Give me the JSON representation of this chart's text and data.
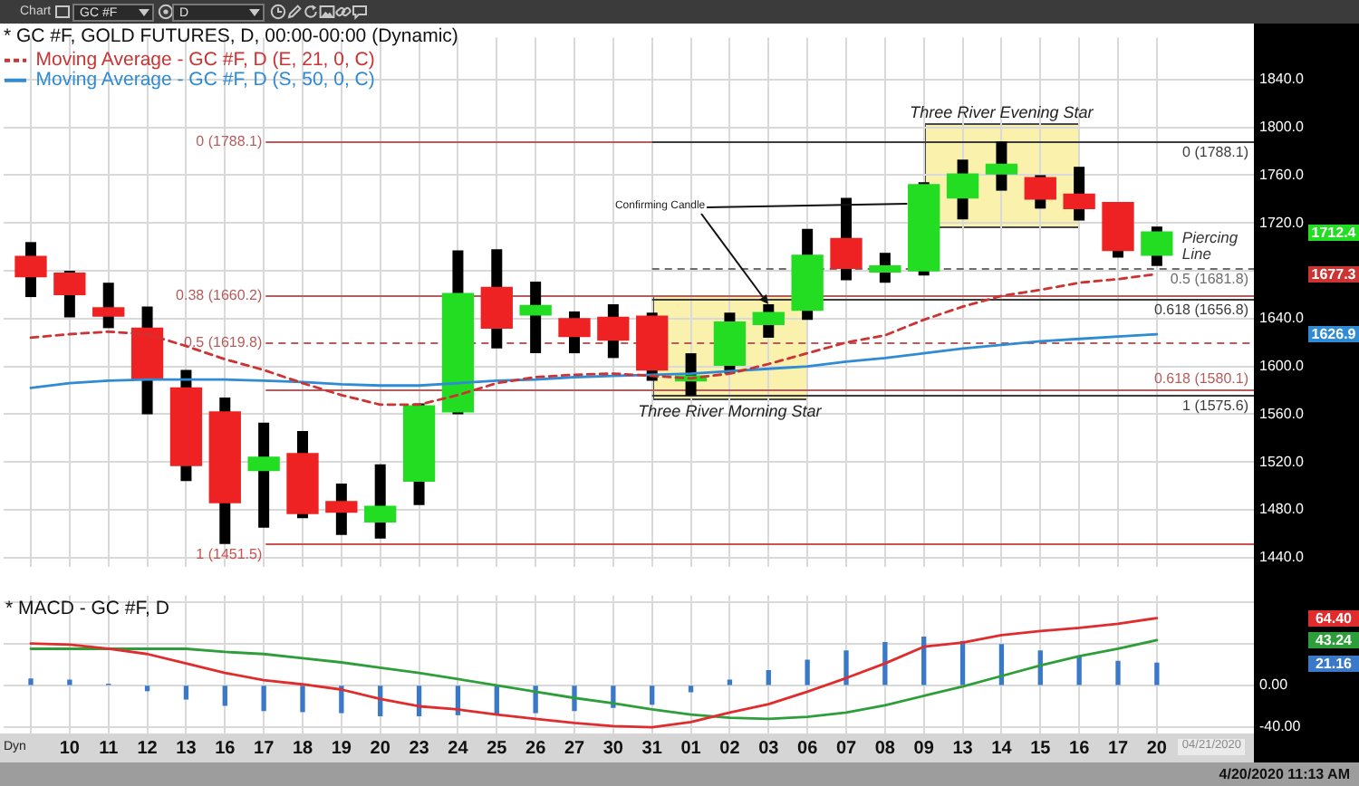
{
  "chart_data": [
    {
      "type": "candlestick",
      "legend_title": "* GC #F, GOLD FUTURES, D, 00:00-00:00 (Dynamic)",
      "categories": [
        null,
        "10",
        "11",
        "12",
        "13",
        "16",
        "17",
        "18",
        "19",
        "20",
        "23",
        "24",
        "25",
        "26",
        "27",
        "30",
        "31",
        "01",
        "02",
        "03",
        "06",
        "07",
        "08",
        "09",
        "13",
        "14",
        "15",
        "16",
        "17",
        "20"
      ],
      "ohlc": [
        [
          1692,
          1704,
          1658,
          1675
        ],
        [
          1678,
          1680,
          1641,
          1660
        ],
        [
          1649,
          1670,
          1632,
          1642
        ],
        [
          1632,
          1650,
          1560,
          1589
        ],
        [
          1582,
          1597,
          1504,
          1517
        ],
        [
          1562,
          1574,
          1451.5,
          1486
        ],
        [
          1513,
          1553,
          1465,
          1524
        ],
        [
          1527,
          1546,
          1473,
          1477
        ],
        [
          1487,
          1502,
          1459,
          1478
        ],
        [
          1470,
          1518,
          1456,
          1483
        ],
        [
          1504,
          1569,
          1484,
          1567
        ],
        [
          1562,
          1697,
          1560,
          1661
        ],
        [
          1666,
          1698,
          1615,
          1632
        ],
        [
          1643,
          1671,
          1611,
          1651
        ],
        [
          1640,
          1646,
          1611,
          1625
        ],
        [
          1641,
          1652,
          1607,
          1622
        ],
        [
          1642,
          1645,
          1588,
          1597
        ],
        [
          1588,
          1611,
          1575.6,
          1592
        ],
        [
          1601,
          1645,
          1594,
          1637
        ],
        [
          1635,
          1652,
          1624,
          1645
        ],
        [
          1647,
          1715,
          1639,
          1693
        ],
        [
          1707,
          1741,
          1672,
          1682
        ],
        [
          1679,
          1695,
          1670,
          1684
        ],
        [
          1680,
          1754,
          1676,
          1752
        ],
        [
          1741,
          1773,
          1723,
          1761
        ],
        [
          1761,
          1788.1,
          1747,
          1769
        ],
        [
          1758,
          1760,
          1732,
          1740
        ],
        [
          1744,
          1767,
          1722,
          1732
        ],
        [
          1737,
          1737,
          1691,
          1697
        ],
        [
          1693,
          1717,
          1684,
          1712.4
        ]
      ],
      "colors": [
        "#ee2222",
        "#ee2222",
        "#ee2222",
        "#ee2222",
        "#ee2222",
        "#ee2222",
        "#22dd22",
        "#ee2222",
        "#ee2222",
        "#22dd22",
        "#22dd22",
        "#22dd22",
        "#ee2222",
        "#22dd22",
        "#ee2222",
        "#ee2222",
        "#ee2222",
        "#22dd22",
        "#22dd22",
        "#22dd22",
        "#22dd22",
        "#ee2222",
        "#22dd22",
        "#22dd22",
        "#22dd22",
        "#22dd22",
        "#ee2222",
        "#ee2222",
        "#ee2222",
        "#22dd22"
      ],
      "series": [
        {
          "type": "line",
          "name": "Moving Average - GC #F, D (E, 21, 0, C)",
          "color": "#cc3333",
          "line_style": "dashed",
          "values": [
            1624,
            1627,
            1629,
            1627,
            1617,
            1606,
            1597,
            1586,
            1576,
            1568,
            1568,
            1576,
            1586,
            1591,
            1593,
            1594,
            1592,
            1590,
            1594,
            1602,
            1611,
            1620,
            1626,
            1639,
            1650,
            1659,
            1664,
            1670,
            1673,
            1677.3
          ]
        },
        {
          "type": "line",
          "name": "Moving Average - GC #F, D (S, 50, 0, C)",
          "color": "#2f8bd4",
          "values": [
            1582,
            1586,
            1588,
            1589,
            1589,
            1589,
            1588,
            1587,
            1585,
            1584,
            1584,
            1586,
            1588,
            1589,
            1591,
            1592,
            1593,
            1594,
            1596,
            1598,
            1600,
            1604,
            1607,
            1611,
            1615,
            1618,
            1621,
            1623,
            1625,
            1626.9
          ]
        }
      ],
      "ylim": [
        1432,
        1875
      ],
      "yticks": [
        {
          "value": 1440,
          "label": "1440.0"
        },
        {
          "value": 1480,
          "label": "1480.0"
        },
        {
          "value": 1520,
          "label": "1520.0"
        },
        {
          "value": 1560,
          "label": "1560.0"
        },
        {
          "value": 1600,
          "label": "1600.0"
        },
        {
          "value": 1640,
          "label": "1640.0"
        },
        {
          "value": 1680,
          "label": null
        },
        {
          "value": 1720,
          "label": "1720.0"
        },
        {
          "value": 1760,
          "label": "1760.0"
        },
        {
          "value": 1800,
          "label": "1800.0"
        },
        {
          "value": 1840,
          "label": "1840.0"
        }
      ],
      "grid": true,
      "legend": "top left",
      "tick_labels": "y",
      "ref_lines": [
        {
          "axis": "y",
          "value": 1788.1,
          "label": "0 (1788.1)",
          "color": "#b55d5d"
        },
        {
          "axis": "y",
          "value": 1660.2,
          "label": "0.38 (1660.2)",
          "color": "#b55d5d"
        },
        {
          "axis": "y",
          "value": 1619.8,
          "label": "0.5 (1619.8)",
          "color": "#b55d5d",
          "line_style": "dashed"
        },
        {
          "axis": "y",
          "value": 1580.1,
          "label": "0.618 (1580.1)",
          "color": "#b55d5d"
        },
        {
          "axis": "y",
          "value": 1451.5,
          "label": "1 (1451.5)",
          "color": "#d05050"
        },
        {
          "axis": "y",
          "value": 1788.1,
          "label": "0 (1788.1)",
          "color": "#3c3c3c"
        },
        {
          "axis": "y",
          "value": 1681.8,
          "label": "0.5 (1681.8)",
          "color": "#6e6e6e",
          "line_style": "dashed"
        },
        {
          "axis": "y",
          "value": 1656.8,
          "label": "0.618 (1656.8)",
          "color": "#3c3c3c"
        },
        {
          "axis": "y",
          "value": 1575.6,
          "label": "1 (1575.6)",
          "color": "#3c3c3c"
        }
      ],
      "annotations": [
        {
          "text": "Three River Evening Star",
          "x": "14",
          "y": 1788.1
        },
        {
          "text": "Three River Morning Star",
          "x": "02",
          "y": 1571
        },
        {
          "text": "Confirming Candle",
          "x": "03",
          "y": 1652
        },
        "Piercing Line",
        "1712.4",
        "1677.3",
        "1626.9",
        "Chart",
        "GC #F",
        "D"
      ]
    },
    {
      "type": "line",
      "title": "* MACD - GC #F, D",
      "categories": [
        null,
        "10",
        "11",
        "12",
        "13",
        "16",
        "17",
        "18",
        "19",
        "20",
        "23",
        "24",
        "25",
        "26",
        "27",
        "30",
        "31",
        "01",
        "02",
        "03",
        "06",
        "07",
        "08",
        "09",
        "13",
        "14",
        "15",
        "16",
        "17",
        "20"
      ],
      "series": [
        {
          "color": "#e02c2c",
          "values": [
            40,
            39,
            35,
            30,
            21,
            12,
            5,
            1,
            -4,
            -13,
            -20,
            -23,
            -28,
            -32,
            -36,
            -39,
            -40,
            -35,
            -26,
            -18,
            -6,
            7,
            21,
            37,
            41,
            48,
            52,
            55,
            59,
            64.4
          ]
        },
        {
          "color": "#2e9e3a",
          "values": [
            35,
            35,
            35,
            35,
            35,
            32,
            30,
            26,
            22,
            17,
            12,
            6,
            0,
            -6,
            -12,
            -17,
            -23,
            -28,
            -31,
            -32,
            -30,
            -26,
            -19,
            -10,
            -1,
            9,
            19,
            28,
            35,
            43.24
          ]
        },
        {
          "type": "bar",
          "color": "#3a78c8",
          "values": [
            6,
            5,
            1,
            -5,
            -13,
            -19,
            -24,
            -25,
            -26,
            -29,
            -29,
            -28,
            -27,
            -26,
            -24,
            -21,
            -18,
            -6,
            5,
            14,
            24,
            33,
            41,
            46,
            42,
            39,
            33,
            27,
            23,
            21.16
          ]
        }
      ],
      "ylim": [
        -46,
        86
      ],
      "yticks": [
        {
          "value": -40,
          "label": "-40.00"
        },
        {
          "value": 0,
          "label": "0.00"
        },
        {
          "value": 40,
          "label": null
        },
        {
          "value": 80,
          "label": null
        }
      ],
      "grid": true,
      "annotations": [
        "64.40",
        "43.24",
        "21.16",
        "Dyn",
        "04/21/2020",
        "4/20/2020 11:13 AM"
      ]
    }
  ]
}
